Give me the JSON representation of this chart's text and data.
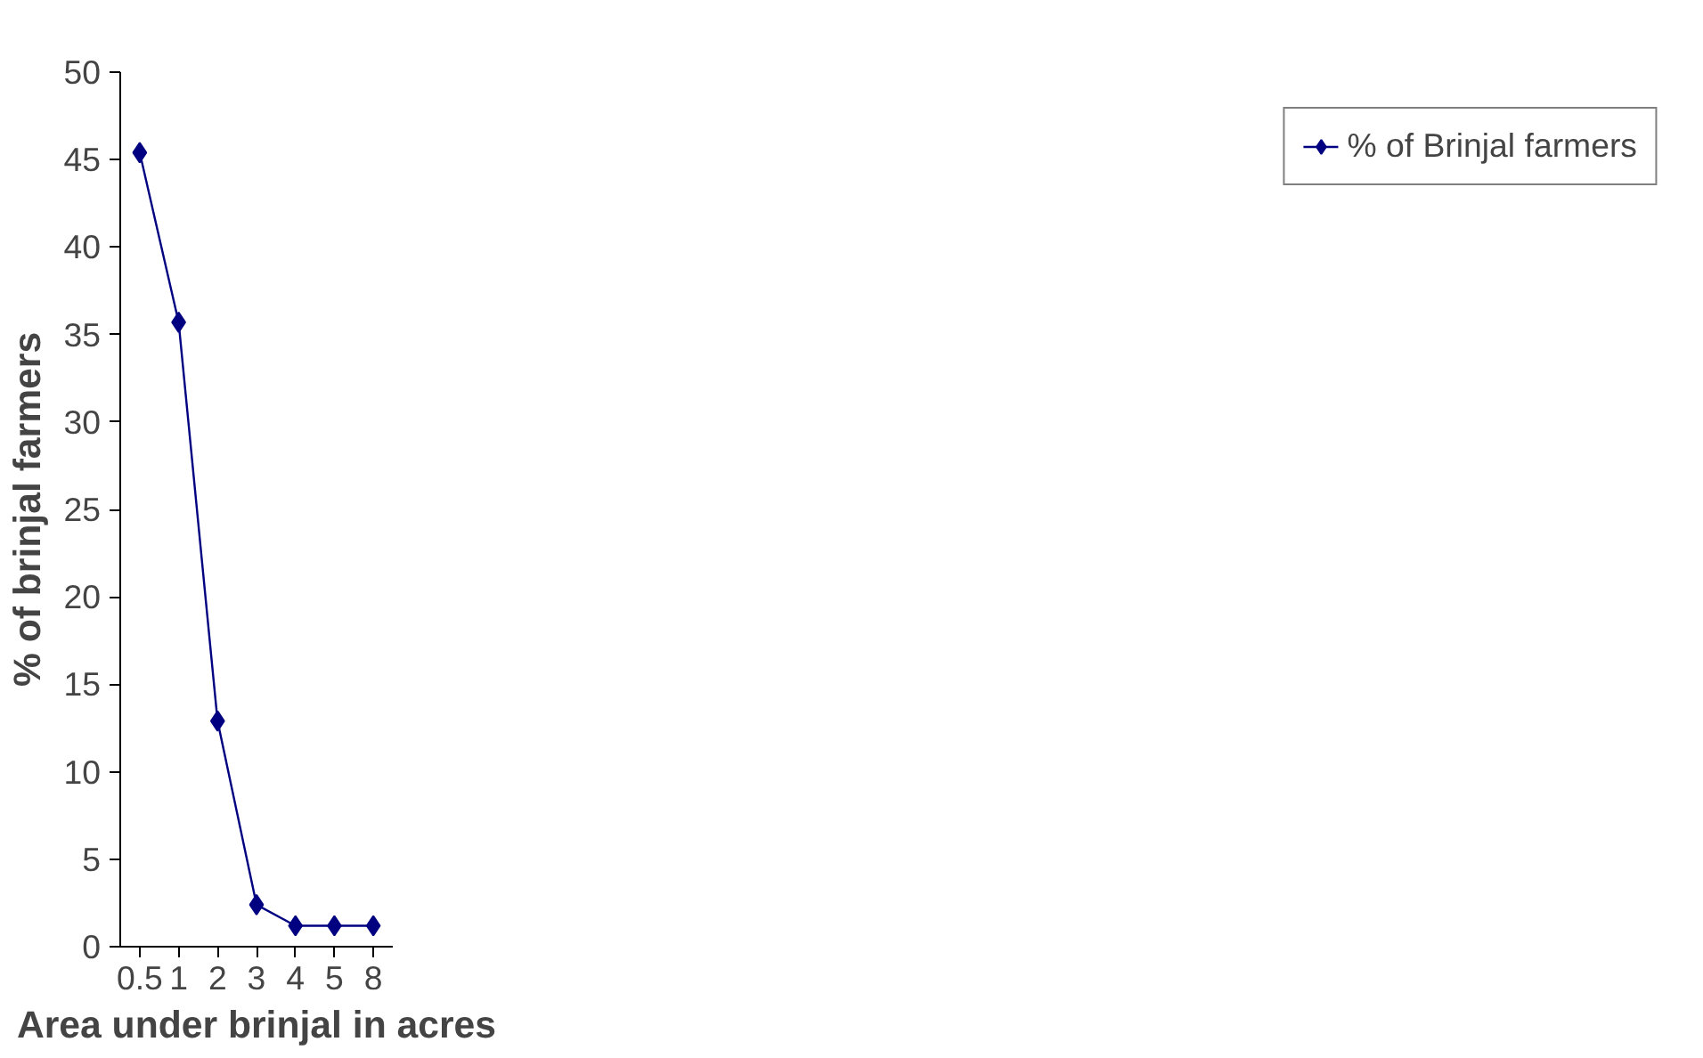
{
  "chart_data": {
    "type": "line",
    "xlabel": "Area under brinjal in acres",
    "ylabel": "% of brinjal farmers",
    "categories": [
      "0.5",
      "1",
      "2",
      "3",
      "4",
      "5",
      "8"
    ],
    "series": [
      {
        "name": "% of Brinjal farmers",
        "color": "#000080",
        "values": [
          45.4,
          35.7,
          12.9,
          2.4,
          1.2,
          1.2,
          1.2
        ]
      }
    ],
    "ylim": [
      0,
      50
    ],
    "yticks": [
      0,
      5,
      10,
      15,
      20,
      25,
      30,
      35,
      40,
      45,
      50
    ],
    "grid": false,
    "legend": "right",
    "marker": "diamond",
    "line_style": "solid"
  }
}
